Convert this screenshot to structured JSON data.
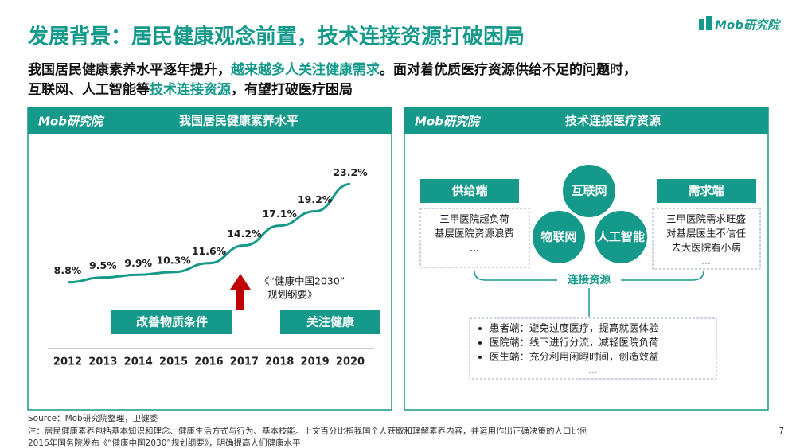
{
  "header": {
    "title": "发展背景：居民健康观念前置，技术连接资源打破困局",
    "logo": "Mob研究院",
    "subtitle": [
      [
        {
          "text": "我国居民健康素养水平逐年提升，",
          "color": "#111111"
        },
        {
          "text": "越来越多人关注健康需求",
          "color": "#15998b"
        },
        {
          "text": "。面对着优质医疗资源供给不足的问题时，",
          "color": "#111111"
        }
      ],
      [
        {
          "text": "互联网、人工智能等",
          "color": "#111111"
        },
        {
          "text": "技术连接资源",
          "color": "#15998b"
        },
        {
          "text": "，有望打破医疗困局",
          "color": "#111111"
        }
      ]
    ]
  },
  "left_panel": {
    "logo": "Mob研究院",
    "title": "我国居民健康素养水平",
    "labels": [
      "改善物质条件",
      "关注健康"
    ],
    "annotation": [
      "《“健康中国2030”",
      "规划纲要》"
    ]
  },
  "chart_data": {
    "type": "line",
    "categories": [
      "2012",
      "2013",
      "2014",
      "2015",
      "2016",
      "2017",
      "2018",
      "2019",
      "2020"
    ],
    "values": [
      8.8,
      9.5,
      9.9,
      10.3,
      11.6,
      14.2,
      17.1,
      19.2,
      23.2
    ],
    "value_labels": [
      "8.8%",
      "9.5%",
      "9.9%",
      "10.3%",
      "11.6%",
      "14.2%",
      "17.1%",
      "19.2%",
      "23.2%"
    ],
    "color": "#15998b",
    "ylim": [
      0,
      25
    ]
  },
  "right_panel": {
    "logo": "Mob研究院",
    "title": "技术连接医疗资源",
    "supply": {
      "title": "供给端",
      "items": [
        "三甲医院超负荷",
        "基层医院资源浪费",
        "..."
      ]
    },
    "demand": {
      "title": "需求端",
      "items": [
        "三甲医院需求旺盛",
        "对基层医生不信任",
        "去大医院看小病",
        "..."
      ]
    },
    "circles": [
      "互联网",
      "物联网",
      "人工智能"
    ],
    "connect": "连接资源",
    "benefits": [
      "患者端：避免过度医疗，提高就医体验",
      "医院端：线下进行分流，减轻医院负荷",
      "医生端：充分利用闲暇时间，创造效益",
      "..."
    ]
  },
  "footer": {
    "source": "Source：Mob研究院整理，卫健委",
    "notes": [
      "注：居民健康素养包括基本知识和理念、健康生活方式与行为、基本技能。上文百分比指我国个人获取和理解素养内容，并运用作出正确决策的人口比例",
      "2016年国务院发布《“健康中国2030”规划纲要》，明确提高人们健康水平"
    ],
    "page": "7"
  }
}
